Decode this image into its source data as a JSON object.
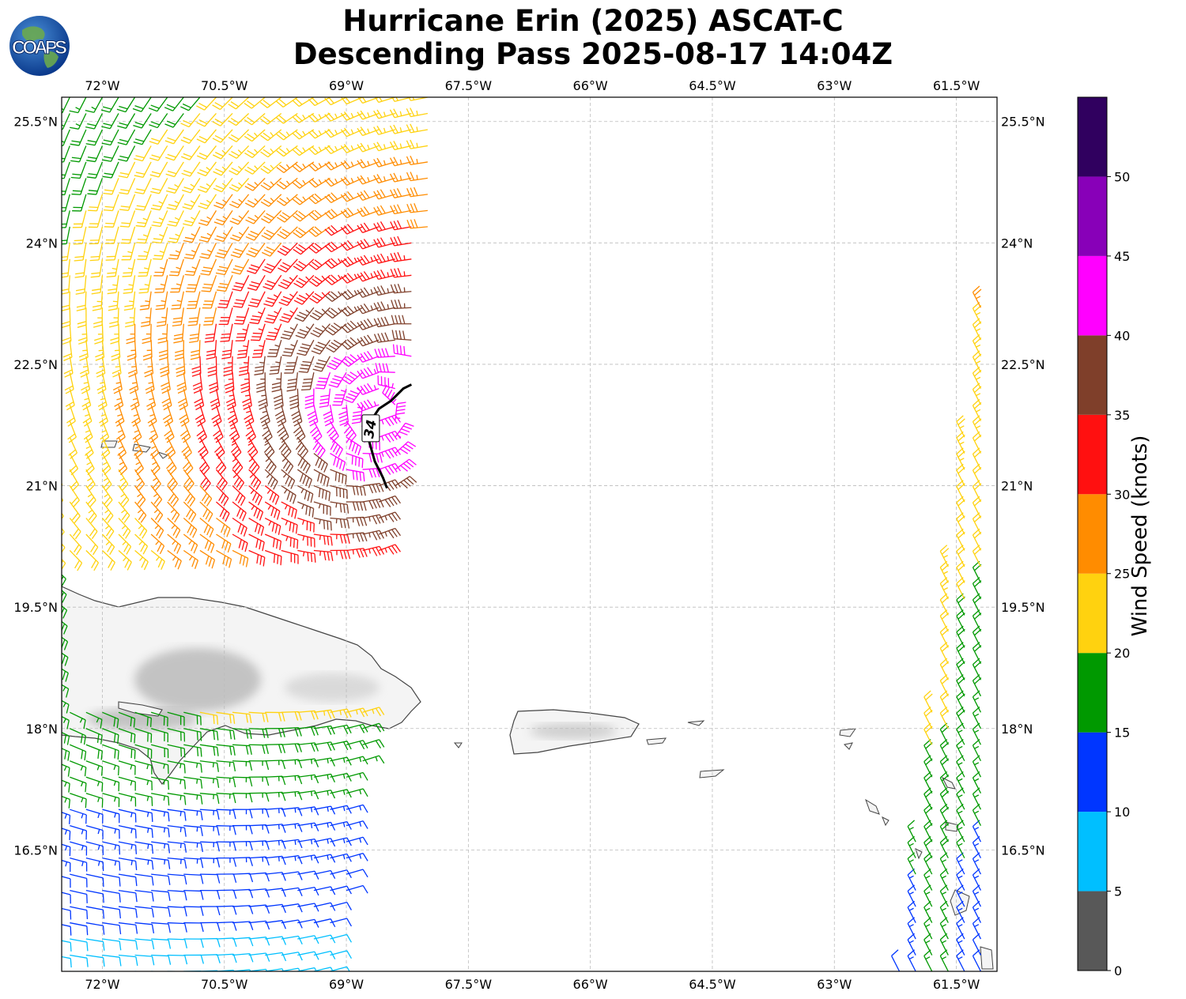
{
  "title": {
    "line1": "Hurricane Erin (2025) ASCAT-C",
    "line2": "Descending Pass 2025-08-17 14:04Z"
  },
  "logo": {
    "text": "COAPS",
    "icon": "globe-logo-icon"
  },
  "map": {
    "lon_range": [
      -72.5,
      -61
    ],
    "lat_range": [
      15,
      25.8
    ],
    "lon_ticks": [
      {
        "value": -72,
        "label": "72°W"
      },
      {
        "value": -70.5,
        "label": "70.5°W"
      },
      {
        "value": -69,
        "label": "69°W"
      },
      {
        "value": -67.5,
        "label": "67.5°W"
      },
      {
        "value": -66,
        "label": "66°W"
      },
      {
        "value": -64.5,
        "label": "64.5°W"
      },
      {
        "value": -63,
        "label": "63°W"
      },
      {
        "value": -61.5,
        "label": "61.5°W"
      }
    ],
    "lat_ticks": [
      {
        "value": 25.5,
        "label": "25.5°N"
      },
      {
        "value": 24,
        "label": "24°N"
      },
      {
        "value": 22.5,
        "label": "22.5°N"
      },
      {
        "value": 21,
        "label": "21°N"
      },
      {
        "value": 19.5,
        "label": "19.5°N"
      },
      {
        "value": 18,
        "label": "18°N"
      },
      {
        "value": 16.5,
        "label": "16.5°N"
      }
    ],
    "gridlines": true,
    "storm_center": {
      "lon": -68.6,
      "lat": 21.9
    },
    "contour_label": "34",
    "swath_west_edge_lon": -72.6,
    "swath_east_edge_lon": -67.8,
    "east_swath_edge_lon": -62.2
  },
  "colorbar": {
    "label": "Wind Speed (knots)",
    "ticks": [
      "0",
      "5",
      "10",
      "15",
      "20",
      "25",
      "30",
      "35",
      "40",
      "45",
      "50"
    ],
    "bands": [
      {
        "from": 0,
        "to": 5,
        "color": "#585858"
      },
      {
        "from": 5,
        "to": 10,
        "color": "#00bfff"
      },
      {
        "from": 10,
        "to": 15,
        "color": "#0036ff"
      },
      {
        "from": 15,
        "to": 20,
        "color": "#009900"
      },
      {
        "from": 20,
        "to": 25,
        "color": "#ffd20f"
      },
      {
        "from": 25,
        "to": 30,
        "color": "#ff8c00"
      },
      {
        "from": 30,
        "to": 35,
        "color": "#ff1010"
      },
      {
        "from": 35,
        "to": 40,
        "color": "#7f3f2a"
      },
      {
        "from": 40,
        "to": 45,
        "color": "#ff00ff"
      },
      {
        "from": 45,
        "to": 50,
        "color": "#8800b8"
      },
      {
        "from": 50,
        "to": 55,
        "color": "#30005f"
      }
    ]
  }
}
